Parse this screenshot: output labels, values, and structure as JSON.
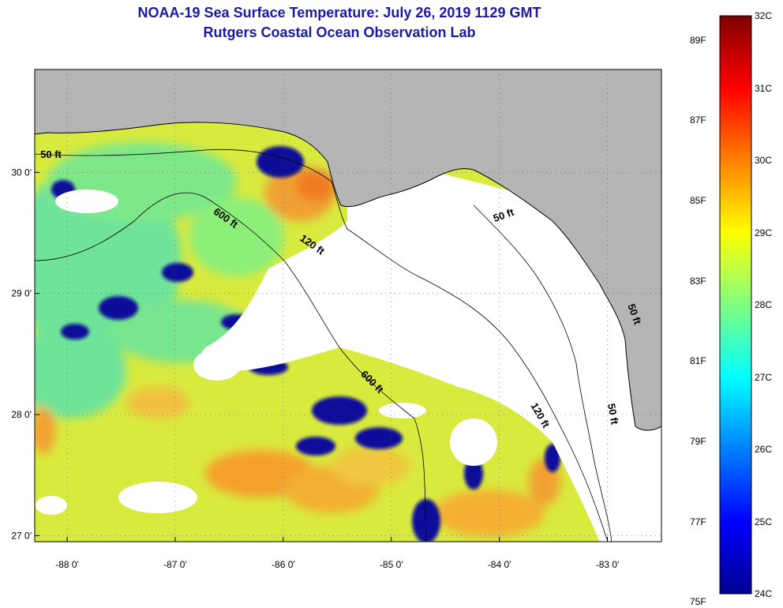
{
  "header": {
    "title_line1": "NOAA-19 Sea Surface Temperature:  July 26, 2019 1129 GMT",
    "title_line2": "Rutgers Coastal Ocean Observation Lab"
  },
  "map": {
    "lon_range": [
      -88.3,
      -82.5
    ],
    "lat_range": [
      26.95,
      30.85
    ],
    "lon_ticks": [
      {
        "value": -88,
        "label": "-88 0'"
      },
      {
        "value": -87,
        "label": "-87 0'"
      },
      {
        "value": -86,
        "label": "-86 0'"
      },
      {
        "value": -85,
        "label": "-85 0'"
      },
      {
        "value": -84,
        "label": "-84 0'"
      },
      {
        "value": -83,
        "label": "-83 0'"
      }
    ],
    "lat_ticks": [
      {
        "value": 30,
        "label": "30 0'"
      },
      {
        "value": 29,
        "label": "29 0'"
      },
      {
        "value": 28,
        "label": "28 0'"
      },
      {
        "value": 27,
        "label": "27 0'"
      }
    ],
    "contour_labels": [
      {
        "text": "50 ft",
        "lon": -83.95,
        "lat": 29.62,
        "rot": -20
      },
      {
        "text": "50 ft",
        "lon": -82.98,
        "lat": 28.0,
        "rot": 80
      },
      {
        "text": "120 ft",
        "lon": -85.75,
        "lat": 29.38,
        "rot": 35
      },
      {
        "text": "120 ft",
        "lon": -83.65,
        "lat": 27.98,
        "rot": 60
      },
      {
        "text": "600 ft",
        "lon": -86.55,
        "lat": 29.6,
        "rot": 35
      },
      {
        "text": "600 ft",
        "lon": -85.2,
        "lat": 28.25,
        "rot": 45
      },
      {
        "text": "50 ft",
        "lon": -88.15,
        "lat": 30.12,
        "rot": 0
      },
      {
        "text": "50 ft",
        "lon": -82.78,
        "lat": 28.82,
        "rot": 70
      }
    ],
    "colors": {
      "land": "#b5b5b5",
      "cloud": "#ffffff",
      "ocean_base": "#d6e84a",
      "contour": "#000000"
    }
  },
  "colorbar": {
    "celsius": [
      "32C",
      "31C",
      "30C",
      "29C",
      "28C",
      "27C",
      "26C",
      "25C",
      "24C"
    ],
    "fahrenheit": [
      "89F",
      "87F",
      "85F",
      "83F",
      "81F",
      "79F",
      "77F",
      "75F"
    ],
    "c_range": [
      24,
      32
    ],
    "stops": [
      "#00008f",
      "#0000ff",
      "#0080ff",
      "#00ffff",
      "#80ff80",
      "#ffff00",
      "#ff8000",
      "#ff0000",
      "#800000"
    ]
  }
}
